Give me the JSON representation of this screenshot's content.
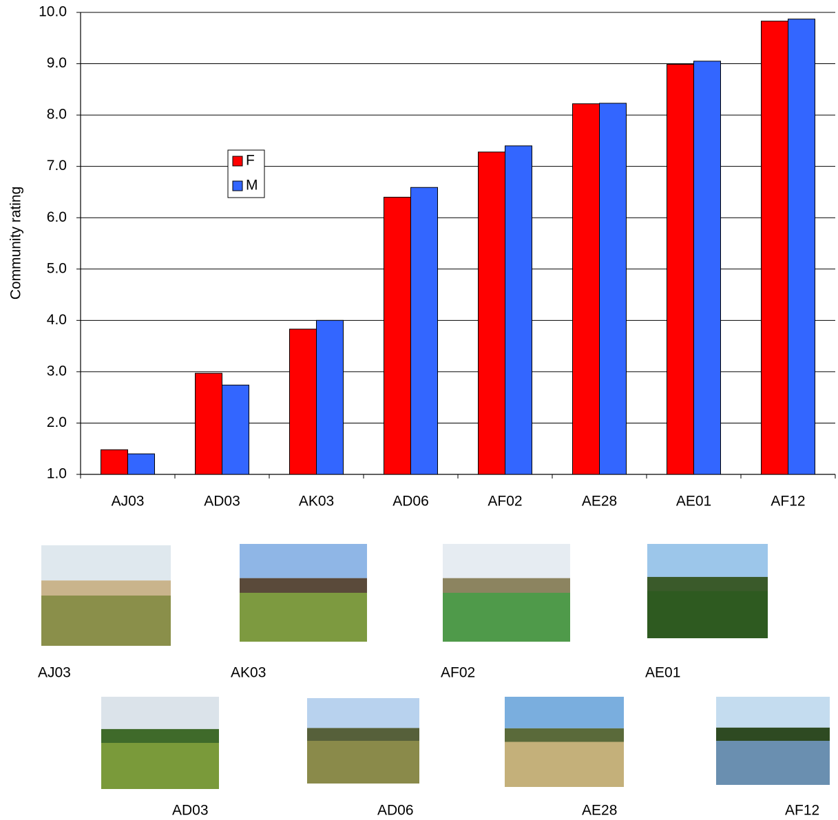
{
  "chart_data": {
    "type": "bar",
    "y_label": "Community rating",
    "categories": [
      "AJ03",
      "AD03",
      "AK03",
      "AD06",
      "AF02",
      "AE28",
      "AE01",
      "AF12"
    ],
    "series": [
      {
        "name": "F",
        "color": "#ff0000",
        "values": [
          1.48,
          2.97,
          3.83,
          6.4,
          7.28,
          8.22,
          8.99,
          9.83
        ]
      },
      {
        "name": "M",
        "color": "#3366ff",
        "values": [
          1.4,
          2.74,
          4.0,
          6.59,
          7.4,
          8.23,
          9.05,
          9.87
        ]
      }
    ],
    "ylim": [
      1,
      10
    ],
    "yticks": [
      {
        "value": 1,
        "label": "1.0"
      },
      {
        "value": 2,
        "label": "2.0"
      },
      {
        "value": 3,
        "label": "3.0"
      },
      {
        "value": 4,
        "label": "4.0"
      },
      {
        "value": 5,
        "label": "5.0"
      },
      {
        "value": 6,
        "label": "6.0"
      },
      {
        "value": 7,
        "label": "7.0"
      },
      {
        "value": 8,
        "label": "8.0"
      },
      {
        "value": 9,
        "label": "9.0"
      },
      {
        "value": 10,
        "label": "10.0"
      }
    ],
    "grid": true,
    "legend": "inside-left"
  },
  "photos": [
    {
      "label": "AJ03"
    },
    {
      "label": "AK03"
    },
    {
      "label": "AF02"
    },
    {
      "label": "AE01"
    },
    {
      "label": "AD03"
    },
    {
      "label": "AD06"
    },
    {
      "label": "AE28"
    },
    {
      "label": "AF12"
    }
  ]
}
